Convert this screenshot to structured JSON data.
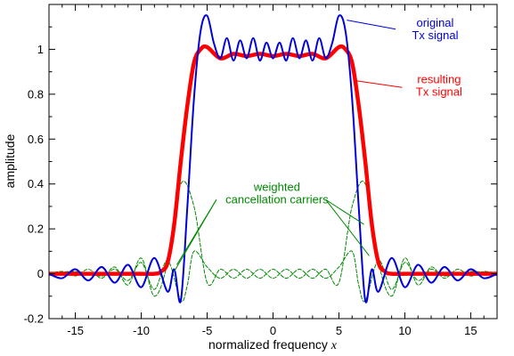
{
  "chart_data": {
    "type": "line",
    "title": "",
    "xlabel": "normalized frequency",
    "xlabel_var": "x",
    "ylabel": "amplitude",
    "xlim": [
      -17,
      17
    ],
    "ylim": [
      -0.2,
      1.2
    ],
    "x_ticks": [
      -15,
      -10,
      -5,
      0,
      5,
      10,
      15
    ],
    "x_tick_labels": [
      "-15",
      "-10",
      "-5",
      "0",
      "5",
      "10",
      "15"
    ],
    "y_ticks": [
      -0.2,
      0,
      0.2,
      0.4,
      0.6,
      0.8,
      1.0
    ],
    "y_tick_labels": [
      "-0.2",
      "0",
      "0.2",
      "0.4",
      "0.6",
      "0.8",
      "1"
    ],
    "grid": false,
    "legend": "none",
    "series": [
      {
        "name": "original Tx signal",
        "color": "#0000dd",
        "style": "solid",
        "x": [
          -17,
          -16,
          -15,
          -14,
          -13,
          -12,
          -11,
          -10,
          -9,
          -8,
          -7.5,
          -7,
          -6.5,
          -6,
          -5.5,
          -5,
          -4.5,
          -4,
          -3.5,
          -3,
          -2.5,
          -2,
          -1.5,
          -1,
          -0.5,
          0,
          0.5,
          1,
          1.5,
          2,
          2.5,
          3,
          3.5,
          4,
          4.5,
          5,
          5.5,
          6,
          6.5,
          7,
          7.5,
          8,
          9,
          10,
          11,
          12,
          13,
          14,
          15,
          16,
          17
        ],
        "y": [
          0.0,
          -0.02,
          0.02,
          -0.03,
          0.03,
          -0.04,
          0.04,
          -0.06,
          0.07,
          -0.08,
          0.02,
          -0.12,
          0.3,
          0.78,
          1.08,
          1.15,
          1.03,
          0.96,
          1.05,
          0.95,
          1.04,
          0.96,
          1.05,
          0.95,
          1.03,
          0.96,
          1.03,
          0.95,
          1.05,
          0.96,
          1.04,
          0.95,
          1.05,
          0.96,
          1.03,
          1.15,
          1.08,
          0.78,
          0.3,
          -0.12,
          0.02,
          -0.08,
          0.07,
          -0.06,
          0.04,
          -0.04,
          0.03,
          -0.03,
          0.02,
          -0.02,
          0.0
        ]
      },
      {
        "name": "resulting Tx signal",
        "color": "#ff0000",
        "style": "solid",
        "x": [
          -17,
          -14,
          -11,
          -9,
          -8.5,
          -8,
          -7.5,
          -7,
          -6.5,
          -6,
          -5.5,
          -5,
          -4,
          -3,
          -2,
          -1,
          0,
          1,
          2,
          3,
          4,
          5,
          5.5,
          6,
          6.5,
          7,
          7.5,
          8,
          8.5,
          9,
          11,
          14,
          17
        ],
        "y": [
          0.0,
          0.0,
          0.0,
          0.0,
          0.01,
          0.05,
          0.22,
          0.5,
          0.75,
          0.94,
          1.0,
          1.01,
          0.96,
          0.98,
          0.97,
          0.98,
          0.97,
          0.98,
          0.97,
          0.98,
          0.96,
          1.01,
          1.0,
          0.94,
          0.75,
          0.5,
          0.22,
          0.05,
          0.01,
          0.0,
          0.0,
          0.0,
          0.0
        ]
      },
      {
        "name": "weighted cancellation carriers (1)",
        "color": "#008800",
        "style": "dashed",
        "x": [
          -17,
          -16,
          -15,
          -14,
          -13,
          -12,
          -11,
          -10,
          -9,
          -8,
          -7,
          -6,
          -5,
          -4,
          -3,
          -2,
          -1,
          0,
          1,
          2,
          3,
          4,
          5,
          6,
          7,
          8,
          9,
          10,
          11,
          12,
          13,
          14,
          15,
          16,
          17
        ],
        "y": [
          0.0,
          0.01,
          -0.01,
          0.02,
          -0.02,
          0.03,
          -0.05,
          0.07,
          -0.1,
          0.05,
          0.4,
          0.3,
          -0.04,
          0.02,
          -0.02,
          0.02,
          -0.02,
          0.02,
          -0.02,
          0.02,
          -0.02,
          0.02,
          -0.04,
          0.3,
          0.4,
          0.05,
          -0.1,
          0.07,
          -0.05,
          0.03,
          -0.02,
          0.02,
          -0.01,
          0.01,
          0.0
        ]
      },
      {
        "name": "weighted cancellation carriers (2)",
        "color": "#008800",
        "style": "dashed",
        "x": [
          -17,
          -15,
          -13,
          -12,
          -11,
          -10,
          -9,
          -8,
          -7,
          -6.5,
          -6,
          -5,
          -4,
          -3,
          -2,
          -1,
          0,
          1,
          2,
          3,
          4,
          5,
          6,
          6.5,
          7,
          8,
          9,
          10,
          11,
          12,
          13,
          15,
          17
        ],
        "y": [
          0.0,
          0.01,
          -0.01,
          0.02,
          -0.03,
          0.05,
          -0.07,
          0.06,
          -0.12,
          -0.05,
          0.1,
          0.03,
          -0.02,
          0.02,
          -0.02,
          0.02,
          -0.02,
          0.02,
          -0.02,
          0.02,
          -0.02,
          0.03,
          0.1,
          -0.05,
          -0.12,
          0.06,
          -0.07,
          0.05,
          -0.03,
          0.02,
          -0.01,
          0.01,
          0.0
        ]
      }
    ],
    "annotations": [
      {
        "lines": [
          "original",
          "Tx signal"
        ],
        "color": "#0000dd",
        "x": 12.3,
        "y": 1.1
      },
      {
        "lines": [
          "resulting",
          "Tx signal"
        ],
        "color": "#ff0000",
        "x": 12.6,
        "y": 0.85
      },
      {
        "lines": [
          "weighted",
          "cancellation carriers"
        ],
        "color": "#008800",
        "x": 0.3,
        "y": 0.37
      }
    ]
  }
}
